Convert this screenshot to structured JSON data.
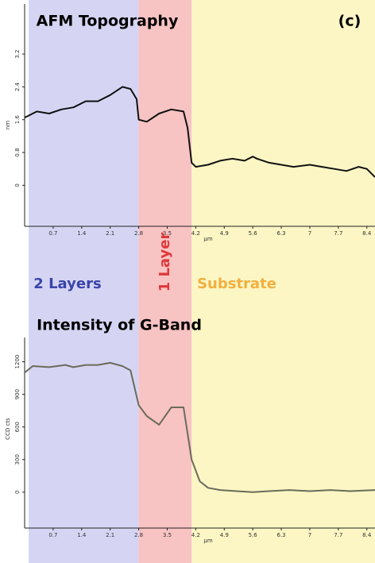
{
  "panel": "(c)",
  "regions": [
    {
      "label": "2 Layers",
      "from": 0.1,
      "to": 2.8,
      "color": "#d5d5f3",
      "text_color": "#3a44a8"
    },
    {
      "label": "1 Layer",
      "from": 2.8,
      "to": 4.1,
      "color": "#f8c3c3",
      "text_color": "#e0383a"
    },
    {
      "label": "Substrate",
      "from": 4.1,
      "to": 8.6,
      "color": "#fcf6c4",
      "text_color": "#f0b040"
    }
  ],
  "chart_data": [
    {
      "type": "line",
      "title": "AFM Topography",
      "x_label": "µm",
      "y_label": "nm",
      "color": "#111111",
      "x": [
        0,
        0.3,
        0.6,
        0.9,
        1.2,
        1.5,
        1.8,
        2.1,
        2.4,
        2.6,
        2.75,
        2.8,
        3.0,
        3.3,
        3.6,
        3.9,
        4.0,
        4.1,
        4.2,
        4.5,
        4.8,
        5.1,
        5.4,
        5.6,
        5.7,
        6.0,
        6.3,
        6.6,
        7.0,
        7.3,
        7.6,
        7.9,
        8.2,
        8.4,
        8.6
      ],
      "values": [
        1.65,
        1.8,
        1.75,
        1.85,
        1.9,
        2.05,
        2.05,
        2.2,
        2.4,
        2.35,
        2.1,
        1.6,
        1.55,
        1.75,
        1.85,
        1.8,
        1.4,
        0.55,
        0.45,
        0.5,
        0.6,
        0.65,
        0.6,
        0.7,
        0.65,
        0.55,
        0.5,
        0.45,
        0.5,
        0.45,
        0.4,
        0.35,
        0.45,
        0.4,
        0.2
      ],
      "xlim": [
        0,
        8.6
      ],
      "xticks": [
        0.7,
        1.4,
        2.1,
        2.8,
        3.5,
        4.2,
        4.9,
        5.6,
        6.3,
        7,
        7.7,
        8.4
      ],
      "ylim": [
        -1.0,
        3.55
      ],
      "yticks": [
        0,
        0.8,
        1.6,
        2.4,
        3.2
      ]
    },
    {
      "type": "line",
      "title": "Intensity of G-Band",
      "x_label": "µm",
      "y_label": "CCD cts",
      "color": "#6b6b5c",
      "x": [
        0,
        0.2,
        0.6,
        1.0,
        1.2,
        1.5,
        1.8,
        2.1,
        2.4,
        2.6,
        2.8,
        3.0,
        3.3,
        3.6,
        3.9,
        4.1,
        4.3,
        4.5,
        4.8,
        5.2,
        5.6,
        6.0,
        6.5,
        7.0,
        7.5,
        8.0,
        8.6
      ],
      "values": [
        1100,
        1160,
        1150,
        1170,
        1150,
        1170,
        1170,
        1190,
        1160,
        1120,
        800,
        700,
        620,
        780,
        780,
        300,
        100,
        40,
        20,
        10,
        0,
        10,
        20,
        10,
        20,
        10,
        20
      ],
      "xlim": [
        0,
        8.6
      ],
      "xticks": [
        0.7,
        1.4,
        2.1,
        2.8,
        3.5,
        4.2,
        4.9,
        5.6,
        6.3,
        7,
        7.7,
        8.4
      ],
      "ylim": [
        -330,
        1350
      ],
      "yticks": [
        0,
        300,
        600,
        900,
        1200
      ]
    }
  ]
}
